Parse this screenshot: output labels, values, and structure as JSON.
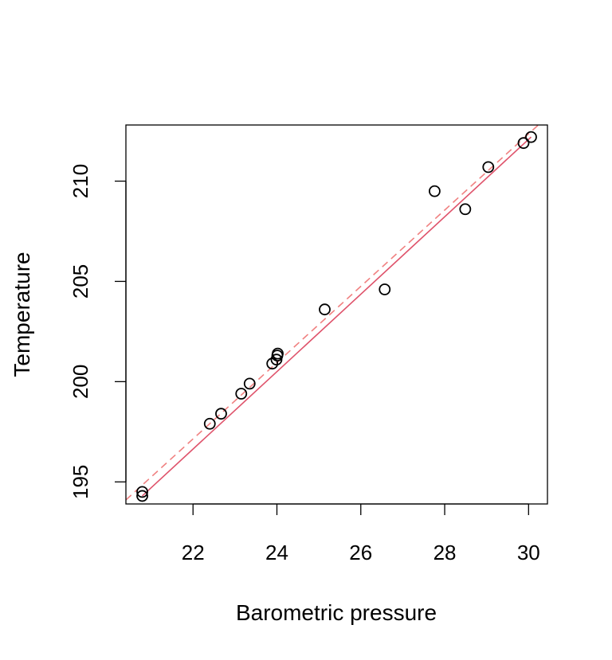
{
  "chart_data": {
    "type": "scatter",
    "title": "",
    "xlabel": "Barometric pressure",
    "ylabel": "Temperature",
    "xlim": [
      20.4,
      30.45
    ],
    "ylim": [
      193.9,
      212.8
    ],
    "x_ticks": [
      22,
      24,
      26,
      28,
      30
    ],
    "y_ticks": [
      195,
      200,
      205,
      210
    ],
    "x_tick_labels": [
      "22",
      "24",
      "26",
      "28",
      "30"
    ],
    "y_tick_labels": [
      "195",
      "200",
      "205",
      "210"
    ],
    "grid": false,
    "legend": "none",
    "points": [
      {
        "x": 20.79,
        "y": 194.3
      },
      {
        "x": 20.79,
        "y": 194.5
      },
      {
        "x": 22.4,
        "y": 197.9
      },
      {
        "x": 22.67,
        "y": 198.4
      },
      {
        "x": 23.15,
        "y": 199.4
      },
      {
        "x": 23.35,
        "y": 199.9
      },
      {
        "x": 23.89,
        "y": 200.9
      },
      {
        "x": 23.99,
        "y": 201.1
      },
      {
        "x": 24.02,
        "y": 201.4
      },
      {
        "x": 24.01,
        "y": 201.3
      },
      {
        "x": 25.14,
        "y": 203.6
      },
      {
        "x": 26.57,
        "y": 204.6
      },
      {
        "x": 27.76,
        "y": 209.5
      },
      {
        "x": 28.49,
        "y": 208.6
      },
      {
        "x": 29.04,
        "y": 210.7
      },
      {
        "x": 29.88,
        "y": 211.9
      },
      {
        "x": 30.06,
        "y": 212.2
      }
    ],
    "fit_lines": [
      {
        "style": "solid",
        "color": "#DF536B",
        "x": [
          20.79,
          30.06
        ],
        "y": [
          194.3,
          212.2
        ]
      },
      {
        "style": "dashed",
        "color": "#F08080",
        "intercept": 155.3,
        "slope": 1.902
      }
    ],
    "point_color": "#000000"
  }
}
